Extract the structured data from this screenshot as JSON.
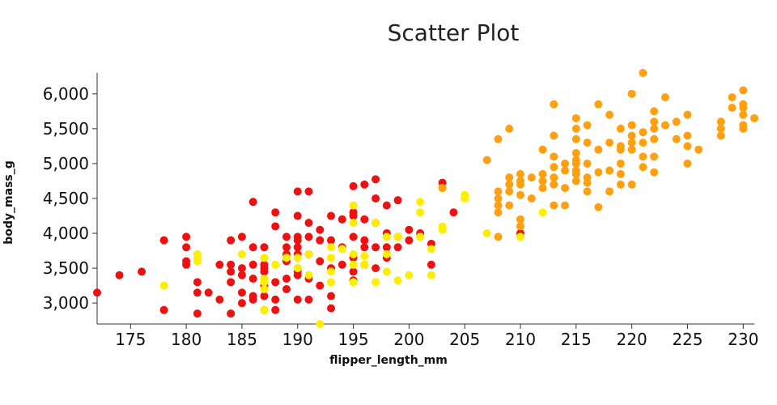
{
  "chart_data": {
    "type": "scatter",
    "title": "Scatter Plot",
    "xlabel": "flipper_length_mm",
    "ylabel": "body_mass_g",
    "xlim": [
      172,
      231
    ],
    "ylim": [
      2700,
      6300
    ],
    "xticks": [
      "175",
      "180",
      "185",
      "190",
      "195",
      "200",
      "205",
      "210",
      "215",
      "220",
      "225",
      "230"
    ],
    "yticks": [
      "3,000",
      "3,500",
      "4,000",
      "4,500",
      "5,000",
      "5,500",
      "6,000"
    ],
    "grid": false,
    "legend": false,
    "series": [
      {
        "color": "#ee1111",
        "points": [
          [
            172,
            3150
          ],
          [
            174,
            3400
          ],
          [
            176,
            3450
          ],
          [
            178,
            3900
          ],
          [
            178,
            2900
          ],
          [
            180,
            3950
          ],
          [
            180,
            3800
          ],
          [
            180,
            3550
          ],
          [
            180,
            3600
          ],
          [
            181,
            3300
          ],
          [
            181,
            3150
          ],
          [
            181,
            2850
          ],
          [
            182,
            3150
          ],
          [
            183,
            3550
          ],
          [
            183,
            3050
          ],
          [
            184,
            3900
          ],
          [
            184,
            3550
          ],
          [
            184,
            3450
          ],
          [
            184,
            3300
          ],
          [
            184,
            2850
          ],
          [
            185,
            3950
          ],
          [
            185,
            3500
          ],
          [
            185,
            3400
          ],
          [
            185,
            3150
          ],
          [
            185,
            3000
          ],
          [
            186,
            4450
          ],
          [
            186,
            3800
          ],
          [
            186,
            3550
          ],
          [
            186,
            3350
          ],
          [
            186,
            3100
          ],
          [
            186,
            3050
          ],
          [
            187,
            3800
          ],
          [
            187,
            3550
          ],
          [
            187,
            3500
          ],
          [
            187,
            3450
          ],
          [
            187,
            3250
          ],
          [
            187,
            3100
          ],
          [
            187,
            2900
          ],
          [
            188,
            4300
          ],
          [
            188,
            4100
          ],
          [
            188,
            3300
          ],
          [
            188,
            3050
          ],
          [
            188,
            2900
          ],
          [
            189,
            3950
          ],
          [
            189,
            3800
          ],
          [
            189,
            3700
          ],
          [
            189,
            3600
          ],
          [
            189,
            3350
          ],
          [
            189,
            3200
          ],
          [
            190,
            4600
          ],
          [
            190,
            4250
          ],
          [
            190,
            3950
          ],
          [
            190,
            3900
          ],
          [
            190,
            3800
          ],
          [
            190,
            3700
          ],
          [
            190,
            3500
          ],
          [
            190,
            3450
          ],
          [
            190,
            3400
          ],
          [
            190,
            3050
          ],
          [
            191,
            4600
          ],
          [
            191,
            4150
          ],
          [
            191,
            3950
          ],
          [
            191,
            3700
          ],
          [
            191,
            3350
          ],
          [
            191,
            3050
          ],
          [
            192,
            4050
          ],
          [
            192,
            3900
          ],
          [
            192,
            3600
          ],
          [
            192,
            3250
          ],
          [
            193,
            4250
          ],
          [
            193,
            3900
          ],
          [
            193,
            3500
          ],
          [
            193,
            3100
          ],
          [
            193,
            2925
          ],
          [
            194,
            4200
          ],
          [
            194,
            3800
          ],
          [
            194,
            3550
          ],
          [
            195,
            4675
          ],
          [
            195,
            4300
          ],
          [
            195,
            4250
          ],
          [
            195,
            3950
          ],
          [
            195,
            3650
          ],
          [
            195,
            3450
          ],
          [
            195,
            3325
          ],
          [
            196,
            4700
          ],
          [
            196,
            4200
          ],
          [
            196,
            3900
          ],
          [
            196,
            3800
          ],
          [
            196,
            3550
          ],
          [
            197,
            4775
          ],
          [
            197,
            4500
          ],
          [
            197,
            4150
          ],
          [
            197,
            3800
          ],
          [
            197,
            3500
          ],
          [
            198,
            4400
          ],
          [
            198,
            4000
          ],
          [
            198,
            3800
          ],
          [
            198,
            3650
          ],
          [
            199,
            4475
          ],
          [
            199,
            3950
          ],
          [
            199,
            3800
          ],
          [
            200,
            4050
          ],
          [
            200,
            3900
          ],
          [
            201,
            4000
          ],
          [
            202,
            3850
          ],
          [
            202,
            3550
          ],
          [
            203,
            4725
          ],
          [
            204,
            4300
          ],
          [
            210,
            4000
          ]
        ]
      },
      {
        "color": "#ffee00",
        "points": [
          [
            178,
            3250
          ],
          [
            181,
            3700
          ],
          [
            181,
            3650
          ],
          [
            181,
            3600
          ],
          [
            185,
            3700
          ],
          [
            187,
            3650
          ],
          [
            187,
            3350
          ],
          [
            187,
            3300
          ],
          [
            187,
            3200
          ],
          [
            187,
            2900
          ],
          [
            188,
            3550
          ],
          [
            189,
            3650
          ],
          [
            190,
            3650
          ],
          [
            190,
            3500
          ],
          [
            191,
            3700
          ],
          [
            191,
            3400
          ],
          [
            192,
            2700
          ],
          [
            193,
            3800
          ],
          [
            193,
            3650
          ],
          [
            193,
            3450
          ],
          [
            193,
            3300
          ],
          [
            194,
            3775
          ],
          [
            195,
            4400
          ],
          [
            195,
            4150
          ],
          [
            195,
            3700
          ],
          [
            195,
            3550
          ],
          [
            195,
            3300
          ],
          [
            196,
            3675
          ],
          [
            196,
            3550
          ],
          [
            197,
            4150
          ],
          [
            197,
            3300
          ],
          [
            198,
            3950
          ],
          [
            198,
            3700
          ],
          [
            198,
            3450
          ],
          [
            199,
            3950
          ],
          [
            199,
            3325
          ],
          [
            200,
            3400
          ],
          [
            201,
            4450
          ],
          [
            201,
            4300
          ],
          [
            201,
            3950
          ],
          [
            202,
            3775
          ],
          [
            202,
            3400
          ],
          [
            203,
            4050
          ],
          [
            203,
            4100
          ],
          [
            203,
            4650
          ],
          [
            205,
            4550
          ],
          [
            205,
            4500
          ],
          [
            207,
            4000
          ],
          [
            210,
            3950
          ],
          [
            212,
            4300
          ]
        ]
      },
      {
        "color": "#ffa010",
        "points": [
          [
            203,
            4650
          ],
          [
            207,
            5050
          ],
          [
            208,
            5350
          ],
          [
            208,
            4600
          ],
          [
            208,
            4500
          ],
          [
            208,
            4400
          ],
          [
            208,
            4300
          ],
          [
            208,
            3950
          ],
          [
            209,
            5500
          ],
          [
            209,
            4800
          ],
          [
            209,
            4700
          ],
          [
            209,
            4600
          ],
          [
            209,
            4400
          ],
          [
            210,
            4850
          ],
          [
            210,
            4750
          ],
          [
            210,
            4700
          ],
          [
            210,
            4550
          ],
          [
            210,
            4200
          ],
          [
            210,
            4100
          ],
          [
            211,
            4800
          ],
          [
            211,
            4500
          ],
          [
            212,
            5200
          ],
          [
            212,
            4850
          ],
          [
            212,
            4750
          ],
          [
            212,
            4650
          ],
          [
            213,
            5850
          ],
          [
            213,
            5400
          ],
          [
            213,
            5100
          ],
          [
            213,
            4950
          ],
          [
            213,
            4800
          ],
          [
            213,
            4700
          ],
          [
            213,
            4400
          ],
          [
            214,
            5000
          ],
          [
            214,
            4900
          ],
          [
            214,
            4650
          ],
          [
            214,
            4400
          ],
          [
            215,
            5650
          ],
          [
            215,
            5500
          ],
          [
            215,
            5350
          ],
          [
            215,
            5150
          ],
          [
            215,
            5050
          ],
          [
            215,
            5000
          ],
          [
            215,
            4900
          ],
          [
            215,
            4850
          ],
          [
            215,
            4750
          ],
          [
            216,
            5550
          ],
          [
            216,
            5300
          ],
          [
            216,
            5000
          ],
          [
            216,
            4800
          ],
          [
            216,
            4725
          ],
          [
            216,
            4600
          ],
          [
            217,
            5850
          ],
          [
            217,
            5200
          ],
          [
            217,
            4875
          ],
          [
            217,
            4375
          ],
          [
            218,
            5700
          ],
          [
            218,
            5300
          ],
          [
            218,
            4900
          ],
          [
            218,
            4600
          ],
          [
            219,
            5500
          ],
          [
            219,
            5250
          ],
          [
            219,
            5200
          ],
          [
            219,
            5000
          ],
          [
            219,
            4850
          ],
          [
            219,
            4700
          ],
          [
            220,
            6000
          ],
          [
            220,
            5550
          ],
          [
            220,
            5400
          ],
          [
            220,
            5300
          ],
          [
            220,
            5200
          ],
          [
            220,
            4700
          ],
          [
            221,
            6300
          ],
          [
            221,
            5450
          ],
          [
            221,
            5300
          ],
          [
            221,
            5100
          ],
          [
            221,
            4950
          ],
          [
            222,
            5750
          ],
          [
            222,
            5600
          ],
          [
            222,
            5500
          ],
          [
            222,
            5350
          ],
          [
            222,
            5100
          ],
          [
            222,
            4875
          ],
          [
            223,
            5950
          ],
          [
            223,
            5550
          ],
          [
            224,
            5600
          ],
          [
            224,
            5350
          ],
          [
            225,
            5700
          ],
          [
            225,
            5400
          ],
          [
            225,
            5250
          ],
          [
            225,
            5000
          ],
          [
            226,
            5200
          ],
          [
            228,
            5600
          ],
          [
            228,
            5500
          ],
          [
            228,
            5400
          ],
          [
            229,
            5950
          ],
          [
            229,
            5800
          ],
          [
            230,
            6050
          ],
          [
            230,
            5850
          ],
          [
            230,
            5800
          ],
          [
            230,
            5700
          ],
          [
            230,
            5550
          ],
          [
            230,
            5500
          ],
          [
            231,
            5650
          ]
        ]
      }
    ]
  }
}
